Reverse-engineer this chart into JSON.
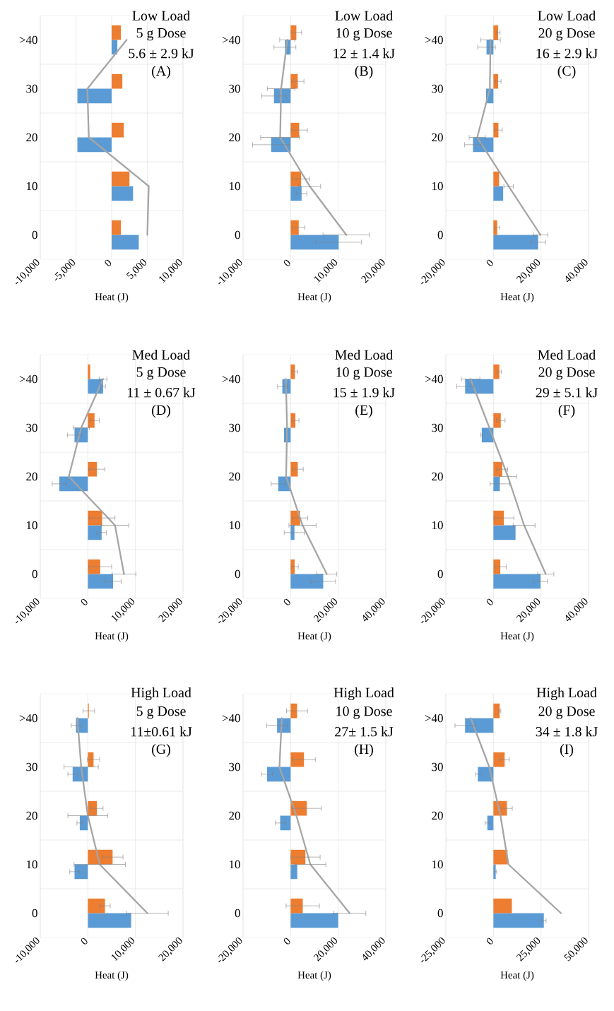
{
  "chart_data": [
    {
      "type": "bar",
      "orientation": "horizontal",
      "title": "Low Load",
      "subtitle": "5 g Dose",
      "annotations": [
        "5.6 ± 2.9  kJ",
        "(A)"
      ],
      "xlabel": "Heat (J)",
      "categories": [
        ">40",
        "30",
        "20",
        "10",
        "0"
      ],
      "xlim": [
        -10000,
        10000
      ],
      "xticks": [
        {
          "value": -10000,
          "label": "-10,000"
        },
        {
          "value": -5000,
          "label": "-5,000"
        },
        0,
        {
          "value": 5000,
          "label": "5,000"
        },
        {
          "value": 10000,
          "label": "10,000"
        }
      ],
      "grid": true,
      "series": [
        {
          "color": "#5b9bd5",
          "values": [
            800,
            -4800,
            -4800,
            3000,
            3800
          ]
        },
        {
          "color": "#ed7d31",
          "values": [
            1300,
            1500,
            1700,
            2500,
            1300
          ]
        },
        {
          "type": "line",
          "color": "#a5a5a5",
          "values": [
            2100,
            -3400,
            -3200,
            5200,
            5000
          ]
        }
      ]
    },
    {
      "type": "bar",
      "orientation": "horizontal",
      "title": "Low Load",
      "subtitle": "10 g Dose",
      "annotations": [
        "12 ± 1.4  kJ",
        "(B)"
      ],
      "xlabel": "Heat (J)",
      "categories": [
        ">40",
        "30",
        "20",
        "10",
        "0"
      ],
      "xlim": [
        -10000,
        20000
      ],
      "xticks": [
        {
          "value": -10000,
          "label": "-10,000"
        },
        0,
        {
          "value": 10000,
          "label": "10,000"
        },
        {
          "value": 20000,
          "label": "20,000"
        }
      ],
      "grid": true,
      "series": [
        {
          "color": "#5b9bd5",
          "values": [
            -1200,
            -3500,
            -4100,
            2300,
            10100
          ],
          "errors": [
            2300,
            2600,
            3900,
            1100,
            4800
          ]
        },
        {
          "color": "#ed7d31",
          "values": [
            1200,
            1500,
            1800,
            2200,
            1700
          ],
          "errors": [
            1100,
            1300,
            1700,
            1800,
            1300
          ]
        },
        {
          "type": "line",
          "color": "#a5a5a5",
          "values": [
            -700,
            -2000,
            -2200,
            4000,
            11700
          ],
          "errors": [
            1600,
            2900,
            4100,
            2300,
            4900
          ]
        }
      ]
    },
    {
      "type": "bar",
      "orientation": "horizontal",
      "title": "Low Load",
      "subtitle": "20 g Dose",
      "annotations": [
        "16 ± 2.9  kJ",
        "(C)"
      ],
      "xlabel": "Heat (J)",
      "categories": [
        ">40",
        "30",
        "20",
        "10",
        "0"
      ],
      "xlim": [
        -20000,
        40000
      ],
      "xticks": [
        {
          "value": -20000,
          "label": "-20,000"
        },
        0,
        {
          "value": 20000,
          "label": "20,000"
        },
        {
          "value": 40000,
          "label": "40,000"
        }
      ],
      "grid": true,
      "series": [
        {
          "color": "#5b9bd5",
          "values": [
            -2900,
            -3100,
            -8600,
            4100,
            18800
          ],
          "errors": [
            3700,
            null,
            3500,
            null,
            3100
          ]
        },
        {
          "color": "#ed7d31",
          "values": [
            2000,
            2000,
            2100,
            2400,
            1600
          ],
          "errors": [
            800,
            1200,
            1600,
            null,
            1100
          ]
        },
        {
          "type": "line",
          "color": "#a5a5a5",
          "values": [
            -1200,
            -1500,
            -6800,
            6400,
            19800
          ],
          "errors": [
            4100,
            null,
            3400,
            2000,
            3100
          ]
        }
      ]
    },
    {
      "type": "bar",
      "orientation": "horizontal",
      "title": "Med Load",
      "subtitle": "5 g Dose",
      "annotations": [
        "11 ± 0.67  kJ",
        "(D)"
      ],
      "xlabel": "Heat (J)",
      "categories": [
        ">40",
        "30",
        "20",
        "10",
        "0"
      ],
      "xlim": [
        -10000,
        20000
      ],
      "xticks": [
        {
          "value": -10000,
          "label": "-10,000"
        },
        0,
        {
          "value": 10000,
          "label": "10,000"
        },
        {
          "value": 20000,
          "label": "20,000"
        }
      ],
      "grid": true,
      "series": [
        {
          "color": "#5b9bd5",
          "values": [
            3200,
            -2800,
            -6000,
            2900,
            5300
          ],
          "errors": [
            500,
            1500,
            1500,
            1000,
            1700
          ]
        },
        {
          "color": "#ed7d31",
          "values": [
            500,
            1400,
            1900,
            3000,
            2600
          ],
          "errors": [
            null,
            1000,
            1700,
            2700,
            2400
          ]
        },
        {
          "type": "line",
          "color": "#a5a5a5",
          "values": [
            3200,
            -1400,
            -4000,
            5700,
            7600
          ],
          "errors": [
            800,
            1700,
            null,
            2900,
            2500
          ]
        }
      ]
    },
    {
      "type": "bar",
      "orientation": "horizontal",
      "title": "Med Load",
      "subtitle": "10 g Dose",
      "annotations": [
        "15 ± 1.9  kJ",
        "(E)"
      ],
      "xlabel": "Heat (J)",
      "categories": [
        ">40",
        "30",
        "20",
        "10",
        "0"
      ],
      "xlim": [
        -20000,
        40000
      ],
      "xticks": [
        {
          "value": -20000,
          "label": "-20,000"
        },
        0,
        {
          "value": 20000,
          "label": "20,000"
        },
        {
          "value": 40000,
          "label": "40,000"
        }
      ],
      "grid": true,
      "series": [
        {
          "color": "#5b9bd5",
          "values": [
            -3500,
            -2800,
            -5200,
            1600,
            13700
          ],
          "errors": [
            2000,
            null,
            3000,
            4300,
            5200
          ]
        },
        {
          "color": "#ed7d31",
          "values": [
            1800,
            2000,
            3000,
            4000,
            1700
          ],
          "errors": [
            1200,
            1500,
            2300,
            3200,
            1500
          ]
        },
        {
          "type": "line",
          "color": "#a5a5a5",
          "values": [
            -2000,
            -1500,
            -1900,
            5000,
            15200
          ],
          "errors": [
            null,
            null,
            null,
            5700,
            4200
          ]
        }
      ]
    },
    {
      "type": "bar",
      "orientation": "horizontal",
      "title": "Med Load",
      "subtitle": "20 g Dose",
      "annotations": [
        "29 ± 5.1  kJ",
        "(F)"
      ],
      "xlabel": "Heat (J)",
      "categories": [
        ">40",
        "30",
        "20",
        "10",
        "0"
      ],
      "xlim": [
        -20000,
        40000
      ],
      "xticks": [
        {
          "value": -20000,
          "label": "-20,000"
        },
        0,
        {
          "value": 20000,
          "label": "20,000"
        },
        {
          "value": 40000,
          "label": "40,000"
        }
      ],
      "grid": true,
      "series": [
        {
          "color": "#5b9bd5",
          "values": [
            -11900,
            -4900,
            2700,
            9300,
            19800
          ],
          "errors": [
            3500,
            400,
            4100,
            null,
            2900
          ]
        },
        {
          "color": "#ed7d31",
          "values": [
            2500,
            3100,
            3700,
            4400,
            2900
          ],
          "errors": [
            900,
            1800,
            2300,
            4200,
            2500
          ]
        },
        {
          "type": "line",
          "color": "#a5a5a5",
          "values": [
            -9600,
            -1700,
            6100,
            12900,
            22000
          ],
          "errors": [
            3900,
            null,
            3600,
            4600,
            3400
          ]
        }
      ]
    },
    {
      "type": "bar",
      "orientation": "horizontal",
      "title": "High Load",
      "subtitle": "5 g Dose",
      "annotations": [
        "11±0.61  kJ",
        "(G)"
      ],
      "xlabel": "Heat (J)",
      "categories": [
        ">40",
        "30",
        "20",
        "10",
        "0"
      ],
      "xlim": [
        -10000,
        20000
      ],
      "xticks": [
        {
          "value": -10000,
          "label": "-10,000"
        },
        0,
        {
          "value": 10000,
          "label": "10,000"
        },
        {
          "value": 20000,
          "label": "20,000"
        }
      ],
      "grid": true,
      "series": [
        {
          "color": "#5b9bd5",
          "values": [
            -2500,
            -3200,
            -1700,
            -2800,
            9100
          ],
          "errors": [
            1000,
            1000,
            600,
            1000,
            null
          ]
        },
        {
          "color": "#ed7d31",
          "values": [
            200,
            1200,
            1900,
            5200,
            3600
          ],
          "errors": [
            1200,
            1300,
            1300,
            2200,
            1100
          ]
        },
        {
          "type": "line",
          "color": "#a5a5a5",
          "values": [
            -2200,
            -1400,
            0,
            2500,
            12500
          ],
          "errors": [
            null,
            3600,
            4200,
            5400,
            4400
          ]
        }
      ]
    },
    {
      "type": "bar",
      "orientation": "horizontal",
      "title": "High Load",
      "subtitle": "10 g Dose",
      "annotations": [
        "27± 1.5  kJ",
        "(H)"
      ],
      "xlabel": "Heat (J)",
      "categories": [
        ">40",
        "30",
        "20",
        "10",
        "0"
      ],
      "xlim": [
        -20000,
        40000
      ],
      "xticks": [
        {
          "value": -20000,
          "label": "-20,000"
        },
        0,
        {
          "value": 20000,
          "label": "20,000"
        },
        {
          "value": 40000,
          "label": "40,000"
        }
      ],
      "grid": true,
      "series": [
        {
          "color": "#5b9bd5",
          "values": [
            -5700,
            -9900,
            -4400,
            2800,
            20000
          ],
          "errors": [
            4400,
            2300,
            2000,
            null,
            null
          ]
        },
        {
          "color": "#ed7d31",
          "values": [
            2700,
            5600,
            6800,
            6200,
            5100
          ],
          "errors": [
            4400,
            4800,
            6100,
            6200,
            7000
          ]
        },
        {
          "type": "line",
          "color": "#a5a5a5",
          "values": [
            -3700,
            -4700,
            2400,
            8300,
            24800
          ],
          "errors": [
            null,
            null,
            null,
            6500,
            6800
          ]
        }
      ]
    },
    {
      "type": "bar",
      "orientation": "horizontal",
      "title": "High Load",
      "subtitle": "20 g Dose",
      "annotations": [
        "34 ± 1.8  kJ",
        "(I)"
      ],
      "xlabel": "Heat (J)",
      "categories": [
        ">40",
        "30",
        "20",
        "10",
        "0"
      ],
      "xlim": [
        -25000,
        50000
      ],
      "xticks": [
        {
          "value": -25000,
          "label": "-25,000"
        },
        0,
        {
          "value": 25000,
          "label": "25,000"
        },
        {
          "value": 50000,
          "label": "50,000"
        }
      ],
      "grid": true,
      "series": [
        {
          "color": "#5b9bd5",
          "values": [
            -14900,
            -8200,
            -3200,
            1200,
            26500
          ],
          "errors": [
            5300,
            1200,
            1200,
            500,
            1200
          ]
        },
        {
          "color": "#ed7d31",
          "values": [
            3300,
            5900,
            7100,
            7400,
            9700
          ],
          "errors": [
            600,
            2400,
            2800,
            null,
            null
          ]
        },
        {
          "type": "line",
          "color": "#a5a5a5",
          "values": [
            -11900,
            -2200,
            3700,
            7900,
            35500
          ]
        }
      ]
    }
  ]
}
